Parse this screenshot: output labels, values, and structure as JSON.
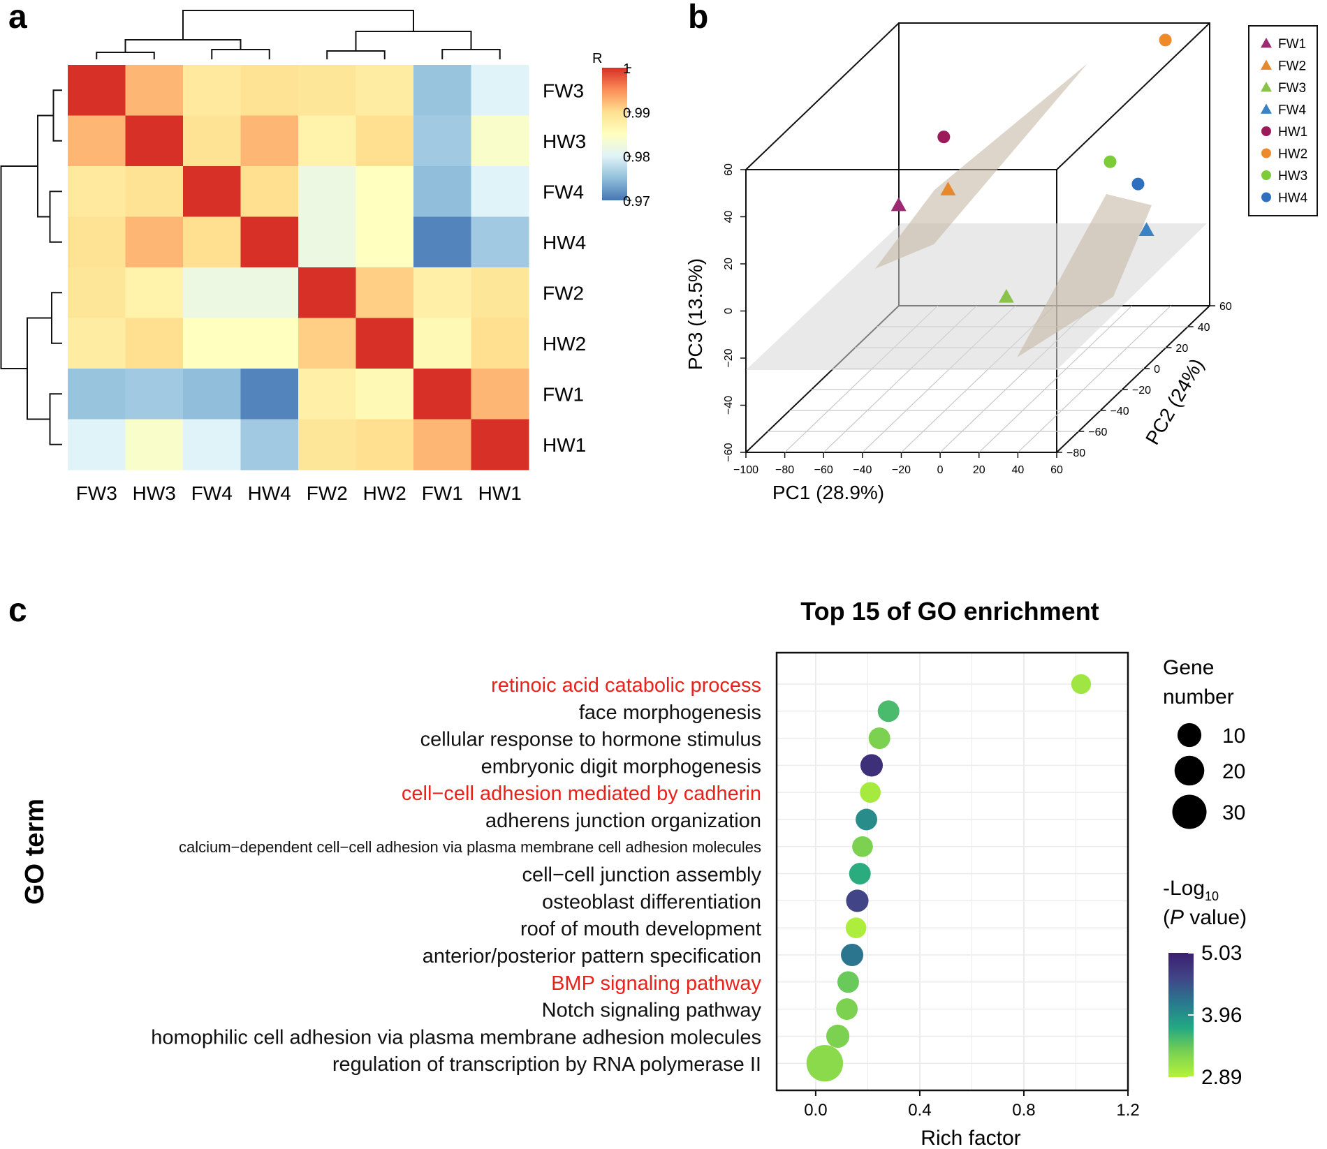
{
  "panel_labels": {
    "a": "a",
    "b": "b",
    "c": "c"
  },
  "chart_data": [
    {
      "id": "a",
      "type": "heatmap",
      "title": "",
      "samples": [
        "FW3",
        "HW3",
        "FW4",
        "HW4",
        "FW2",
        "HW2",
        "FW1",
        "HW1"
      ],
      "matrix": [
        [
          1.0,
          0.9925,
          0.9885,
          0.9895,
          0.989,
          0.988,
          0.9755,
          0.98
        ],
        [
          0.9925,
          1.0,
          0.9895,
          0.9925,
          0.987,
          0.99,
          0.976,
          0.984
        ],
        [
          0.9885,
          0.9895,
          1.0,
          0.99,
          0.982,
          0.985,
          0.975,
          0.98
        ],
        [
          0.9895,
          0.9925,
          0.99,
          1.0,
          0.982,
          0.985,
          0.971,
          0.976
        ],
        [
          0.989,
          0.987,
          0.982,
          0.982,
          1.0,
          0.991,
          0.9875,
          0.989
        ],
        [
          0.988,
          0.99,
          0.985,
          0.985,
          0.991,
          1.0,
          0.986,
          0.99
        ],
        [
          0.9755,
          0.976,
          0.975,
          0.971,
          0.9875,
          0.986,
          1.0,
          0.9925
        ],
        [
          0.98,
          0.984,
          0.98,
          0.976,
          0.989,
          0.99,
          0.9925,
          1.0
        ]
      ],
      "colorbar": {
        "title": "R",
        "min": 0.97,
        "max": 1,
        "ticks": [
          "1",
          "0.99",
          "0.98",
          "0.97"
        ],
        "colors": [
          "#4575b4",
          "#91bfdb",
          "#e0f3f8",
          "#ffffbf",
          "#fee090",
          "#fc8d59",
          "#d73027"
        ]
      },
      "dendrogram": "hierarchical clustering of samples: ((FW3,HW3),(FW4,HW4)) and ((FW2,HW2),(FW1,HW1))"
    },
    {
      "id": "b",
      "type": "scatter",
      "subtype": "3D PCA",
      "xlabel": "PC1 (28.9%)",
      "ylabel": "PC2 (24%)",
      "zlabel": "PC3 (13.5%)",
      "x_ticks": [
        "−100",
        "−80",
        "−60",
        "−40",
        "−20",
        "0",
        "20",
        "40",
        "60"
      ],
      "y_ticks": [
        "−80",
        "−60",
        "−40",
        "−20",
        "0",
        "20",
        "40",
        "60"
      ],
      "z_ticks": [
        "−60",
        "−40",
        "−20",
        "0",
        "20",
        "40",
        "60"
      ],
      "legend": [
        {
          "label": "FW1",
          "color": "#9c2a72",
          "shape": "triangle"
        },
        {
          "label": "FW2",
          "color": "#e5882e",
          "shape": "triangle"
        },
        {
          "label": "FW3",
          "color": "#8bc34a",
          "shape": "triangle"
        },
        {
          "label": "FW4",
          "color": "#3b82c4",
          "shape": "triangle"
        },
        {
          "label": "HW1",
          "color": "#9c1a5a",
          "shape": "circle"
        },
        {
          "label": "HW2",
          "color": "#ef8a2a",
          "shape": "circle"
        },
        {
          "label": "HW3",
          "color": "#7ccc3a",
          "shape": "circle"
        },
        {
          "label": "HW4",
          "color": "#2e6fc0",
          "shape": "circle"
        }
      ],
      "points": [
        {
          "label": "FW1",
          "pc1": -72,
          "pc2": 10,
          "pc3": 5
        },
        {
          "label": "FW2",
          "pc1": -55,
          "pc2": 25,
          "pc3": 5
        },
        {
          "label": "FW3",
          "pc1": 20,
          "pc2": -55,
          "pc3": -5
        },
        {
          "label": "FW4",
          "pc1": 50,
          "pc2": 20,
          "pc3": -10
        },
        {
          "label": "HW1",
          "pc1": -60,
          "pc2": 30,
          "pc3": 25
        },
        {
          "label": "HW2",
          "pc1": 40,
          "pc2": 55,
          "pc3": 55
        },
        {
          "label": "HW3",
          "pc1": 20,
          "pc2": 40,
          "pc3": 10
        },
        {
          "label": "HW4",
          "pc1": 40,
          "pc2": 30,
          "pc3": 5
        }
      ]
    },
    {
      "id": "c",
      "type": "scatter",
      "subtype": "bubble",
      "title": "Top 15 of GO enrichment",
      "xlabel": "Rich factor",
      "ylabel": "GO term",
      "xlim": [
        -0.15,
        1.2
      ],
      "x_ticks": [
        0.0,
        0.4,
        0.8,
        1.2
      ],
      "x_tick_labels": [
        "0.0",
        "0.4",
        "0.8",
        "1.2"
      ],
      "terms": [
        {
          "term": "retinoic acid catabolic process",
          "rich": 1.02,
          "genes": 5,
          "logp": 3.05,
          "highlight": true
        },
        {
          "term": "face morphogenesis",
          "rich": 0.28,
          "genes": 7,
          "logp": 3.55,
          "highlight": false
        },
        {
          "term": "cellular response to hormone stimulus",
          "rich": 0.245,
          "genes": 7,
          "logp": 3.3,
          "highlight": false
        },
        {
          "term": "embryonic digit morphogenesis",
          "rich": 0.215,
          "genes": 8,
          "logp": 4.85,
          "highlight": false
        },
        {
          "term": "cell−cell adhesion mediated by cadherin",
          "rich": 0.21,
          "genes": 6,
          "logp": 3.0,
          "highlight": true
        },
        {
          "term": "adherens junction organization",
          "rich": 0.195,
          "genes": 7,
          "logp": 4.0,
          "highlight": false
        },
        {
          "term": "calcium−dependent cell−cell adhesion via plasma membrane cell adhesion molecules",
          "rich": 0.18,
          "genes": 6,
          "logp": 3.3,
          "highlight": false
        },
        {
          "term": "cell−cell junction assembly",
          "rich": 0.17,
          "genes": 7,
          "logp": 3.7,
          "highlight": false
        },
        {
          "term": "osteoblast differentiation",
          "rich": 0.16,
          "genes": 8,
          "logp": 4.6,
          "highlight": false
        },
        {
          "term": "roof of mouth development",
          "rich": 0.155,
          "genes": 6,
          "logp": 2.95,
          "highlight": false
        },
        {
          "term": "anterior/posterior pattern specification",
          "rich": 0.14,
          "genes": 8,
          "logp": 4.2,
          "highlight": false
        },
        {
          "term": "BMP signaling pathway",
          "rich": 0.125,
          "genes": 7,
          "logp": 3.4,
          "highlight": true
        },
        {
          "term": "Notch signaling pathway",
          "rich": 0.12,
          "genes": 7,
          "logp": 3.3,
          "highlight": false
        },
        {
          "term": "homophilic cell adhesion via plasma membrane adhesion molecules",
          "rich": 0.085,
          "genes": 9,
          "logp": 3.3,
          "highlight": false
        },
        {
          "term": "regulation of transcription by RNA polymerase II",
          "rich": 0.035,
          "genes": 36,
          "logp": 3.2,
          "highlight": false
        }
      ],
      "size_legend": {
        "title_line1": "Gene",
        "title_line2": "number",
        "values": [
          10,
          20,
          30
        ],
        "labels": [
          "10",
          "20",
          "30"
        ]
      },
      "color_legend": {
        "title_line1": "-Log",
        "title_sub": "10",
        "title_line2_pre": "(",
        "title_line2_italic": "P",
        "title_line2_post": " value)",
        "min": 2.89,
        "max": 5.03,
        "labels": [
          "5.03",
          "3.96",
          "2.89"
        ],
        "colors": [
          "#b5f33a",
          "#7ad151",
          "#22a884",
          "#2a788e",
          "#414487",
          "#3b1f6e"
        ]
      },
      "highlight_color": "#e8211b"
    }
  ]
}
